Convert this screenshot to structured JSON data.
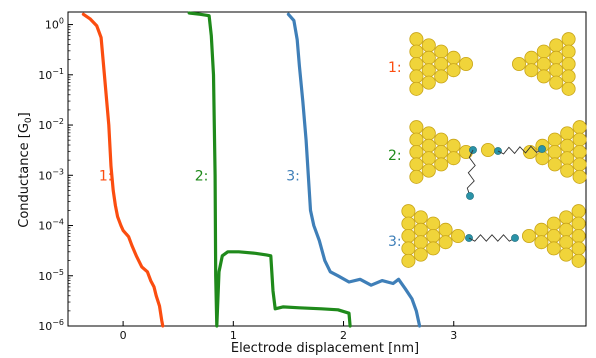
{
  "chart_data": {
    "type": "line",
    "xlabel": "Electrode displacement [nm]",
    "ylabel_main": "Conductance [G",
    "ylabel_sub": "0",
    "ylabel_close": "]",
    "x_ticks": [
      {
        "value": 0,
        "label": "0"
      },
      {
        "value": 1,
        "label": "1"
      },
      {
        "value": 2,
        "label": "2"
      },
      {
        "value": 3,
        "label": "3"
      }
    ],
    "y_ticks": [
      {
        "exp": 0,
        "base": "10",
        "sup": "0"
      },
      {
        "exp": -1,
        "base": "10",
        "sup": "−1"
      },
      {
        "exp": -2,
        "base": "10",
        "sup": "−2"
      },
      {
        "exp": -3,
        "base": "10",
        "sup": "−3"
      },
      {
        "exp": -4,
        "base": "10",
        "sup": "−4"
      },
      {
        "exp": -5,
        "base": "10",
        "sup": "−5"
      },
      {
        "exp": -6,
        "base": "10",
        "sup": "−6"
      }
    ],
    "xlim": [
      -0.5,
      4.2
    ],
    "ylim_exp": [
      -6,
      0.25
    ],
    "y_scale": "log",
    "series": [
      {
        "label": "1:",
        "color": "#fb4d10",
        "label_at": {
          "x": -0.22,
          "y": 0.001
        },
        "points": [
          [
            -0.36,
            1.6
          ],
          [
            -0.3,
            1.3
          ],
          [
            -0.24,
            0.95
          ],
          [
            -0.2,
            0.55
          ],
          [
            -0.17,
            0.1
          ],
          [
            -0.13,
            0.01
          ],
          [
            -0.11,
            0.0015
          ],
          [
            -0.09,
            0.0005
          ],
          [
            -0.07,
            0.00025
          ],
          [
            -0.05,
            0.00015
          ],
          [
            -0.02,
            0.0001
          ],
          [
            0.0,
            8e-05
          ],
          [
            0.05,
            6e-05
          ],
          [
            0.08,
            4e-05
          ],
          [
            0.12,
            2.5e-05
          ],
          [
            0.17,
            1.5e-05
          ],
          [
            0.22,
            1.2e-05
          ],
          [
            0.25,
            8e-06
          ],
          [
            0.28,
            6e-06
          ],
          [
            0.3,
            4e-06
          ],
          [
            0.33,
            2.5e-06
          ],
          [
            0.35,
            1.3e-06
          ],
          [
            0.36,
            1e-06
          ]
        ]
      },
      {
        "label": "2:",
        "color": "#1f8a1b",
        "label_at": {
          "x": 0.65,
          "y": 0.001
        },
        "points": [
          [
            0.6,
            1.7
          ],
          [
            0.7,
            1.6
          ],
          [
            0.78,
            1.5
          ],
          [
            0.8,
            0.6
          ],
          [
            0.82,
            0.1
          ],
          [
            0.835,
            0.001
          ],
          [
            0.84,
            1e-05
          ],
          [
            0.85,
            1e-06
          ],
          [
            0.87,
            1.2e-05
          ],
          [
            0.9,
            2.5e-05
          ],
          [
            0.95,
            3e-05
          ],
          [
            1.05,
            3e-05
          ],
          [
            1.2,
            2.8e-05
          ],
          [
            1.3,
            2.6e-05
          ],
          [
            1.34,
            2.5e-05
          ],
          [
            1.36,
            5e-06
          ],
          [
            1.38,
            2.2e-06
          ],
          [
            1.45,
            2.4e-06
          ],
          [
            1.6,
            2.3e-06
          ],
          [
            1.8,
            2.2e-06
          ],
          [
            1.95,
            2.1e-06
          ],
          [
            2.05,
            1.8e-06
          ],
          [
            2.06,
            1e-06
          ]
        ]
      },
      {
        "label": "3:",
        "color": "#3f7fb8",
        "label_at": {
          "x": 1.48,
          "y": 0.001
        },
        "points": [
          [
            1.5,
            1.6
          ],
          [
            1.55,
            1.2
          ],
          [
            1.58,
            0.5
          ],
          [
            1.6,
            0.15
          ],
          [
            1.63,
            0.03
          ],
          [
            1.66,
            0.005
          ],
          [
            1.68,
            0.001
          ],
          [
            1.7,
            0.0002
          ],
          [
            1.73,
            0.0001
          ],
          [
            1.78,
            5e-05
          ],
          [
            1.83,
            2e-05
          ],
          [
            1.88,
            1.2e-05
          ],
          [
            1.95,
            1e-05
          ],
          [
            2.05,
            7.5e-06
          ],
          [
            2.15,
            8.5e-06
          ],
          [
            2.25,
            6.5e-06
          ],
          [
            2.35,
            8e-06
          ],
          [
            2.45,
            7e-06
          ],
          [
            2.5,
            8.5e-06
          ],
          [
            2.56,
            5.5e-06
          ],
          [
            2.62,
            3.5e-06
          ],
          [
            2.66,
            2e-06
          ],
          [
            2.69,
            1e-06
          ]
        ]
      }
    ]
  },
  "schematic": {
    "labels": [
      {
        "text": "1:",
        "color": "#fb4d10"
      },
      {
        "text": "2:",
        "color": "#1f8a1b"
      },
      {
        "text": "3:",
        "color": "#3f7fb8"
      }
    ],
    "gold_color": "#f0d43a",
    "gold_edge": "#c8a418",
    "anchor_color": "#2a93a8"
  }
}
